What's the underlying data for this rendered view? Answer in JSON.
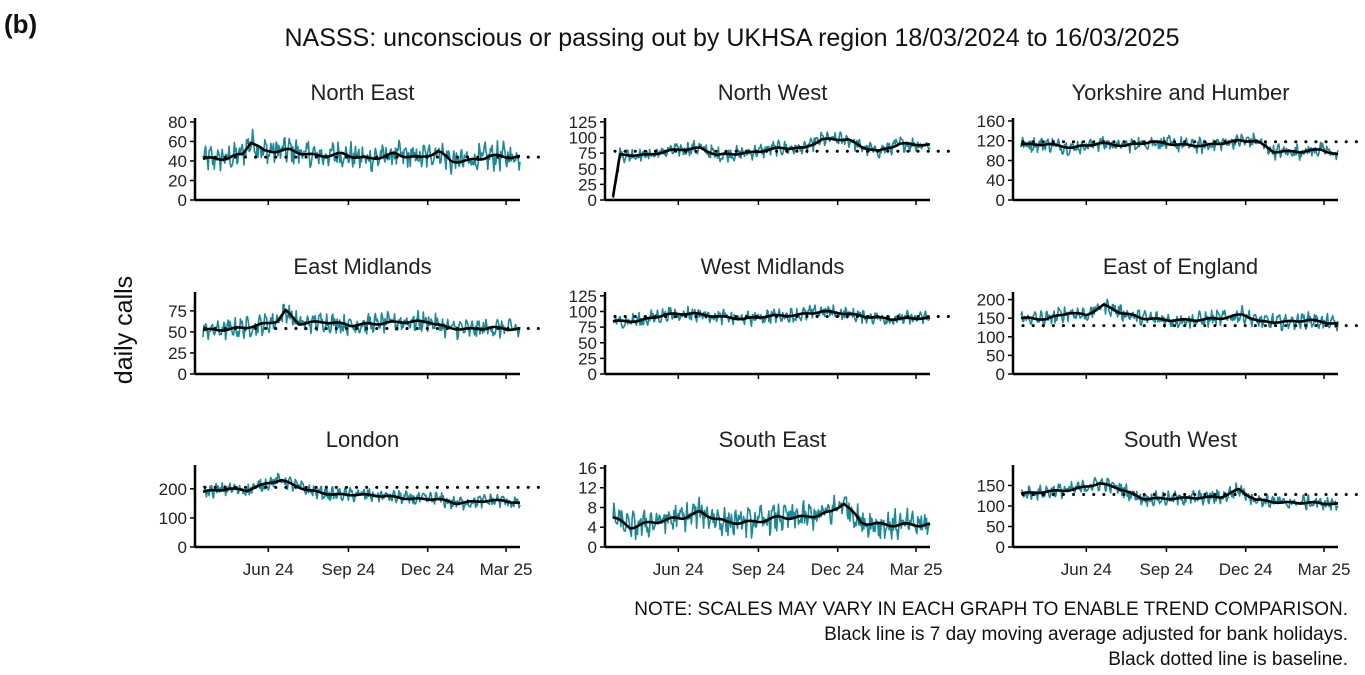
{
  "panel_label": "(b)",
  "title": "NASSS: unconscious or passing out by UKHSA region 18/03/2024 to 16/03/2025",
  "ylabel": "daily calls",
  "notes": [
    "NOTE: SCALES MAY VARY IN EACH GRAPH TO ENABLE TREND COMPARISON.",
    "Black line is 7 day moving average adjusted for bank holidays.",
    "Black dotted line is baseline."
  ],
  "colors": {
    "daily": "#1a8a96",
    "average": "#000000",
    "baseline": "#000000"
  },
  "chart_data": [
    {
      "type": "line",
      "title": "North East",
      "x_range": [
        "2024-03-18",
        "2025-03-16"
      ],
      "x_ticks": [
        "Jun 24",
        "Sep 24",
        "Dec 24",
        "Mar 25"
      ],
      "y_ticks": [
        0,
        20,
        40,
        60,
        80
      ],
      "ylim": [
        0,
        82
      ],
      "baseline": 44,
      "avg_trend": [
        [
          0,
          42
        ],
        [
          30,
          43
        ],
        [
          45,
          47
        ],
        [
          55,
          60
        ],
        [
          70,
          50
        ],
        [
          100,
          51
        ],
        [
          130,
          45
        ],
        [
          160,
          47
        ],
        [
          190,
          42
        ],
        [
          220,
          47
        ],
        [
          250,
          43
        ],
        [
          270,
          50
        ],
        [
          285,
          40
        ],
        [
          305,
          40
        ],
        [
          330,
          45
        ],
        [
          363,
          44
        ]
      ],
      "daily_amplitude": 12
    },
    {
      "type": "line",
      "title": "North West",
      "x_range": [
        "2024-03-18",
        "2025-03-16"
      ],
      "x_ticks": [
        "Jun 24",
        "Sep 24",
        "Dec 24",
        "Mar 25"
      ],
      "y_ticks": [
        0,
        25,
        50,
        75,
        100,
        125
      ],
      "ylim": [
        0,
        128
      ],
      "baseline": 78,
      "avg_trend": [
        [
          0,
          5
        ],
        [
          8,
          72
        ],
        [
          40,
          72
        ],
        [
          70,
          80
        ],
        [
          100,
          83
        ],
        [
          120,
          72
        ],
        [
          160,
          76
        ],
        [
          190,
          83
        ],
        [
          220,
          83
        ],
        [
          240,
          97
        ],
        [
          270,
          97
        ],
        [
          285,
          85
        ],
        [
          305,
          78
        ],
        [
          330,
          90
        ],
        [
          363,
          88
        ]
      ],
      "daily_amplitude": 10
    },
    {
      "type": "line",
      "title": "Yorkshire and Humber",
      "x_range": [
        "2024-03-18",
        "2025-03-16"
      ],
      "x_ticks": [
        "Jun 24",
        "Sep 24",
        "Dec 24",
        "Mar 25"
      ],
      "y_ticks": [
        0,
        40,
        80,
        120,
        160
      ],
      "ylim": [
        0,
        162
      ],
      "baseline": 118,
      "avg_trend": [
        [
          0,
          112
        ],
        [
          30,
          113
        ],
        [
          60,
          106
        ],
        [
          90,
          115
        ],
        [
          120,
          110
        ],
        [
          150,
          118
        ],
        [
          180,
          112
        ],
        [
          210,
          110
        ],
        [
          250,
          120
        ],
        [
          270,
          120
        ],
        [
          290,
          98
        ],
        [
          320,
          98
        ],
        [
          345,
          102
        ],
        [
          363,
          92
        ]
      ],
      "daily_amplitude": 13
    },
    {
      "type": "line",
      "title": "East Midlands",
      "x_range": [
        "2024-03-18",
        "2025-03-16"
      ],
      "x_ticks": [
        "Jun 24",
        "Sep 24",
        "Dec 24",
        "Mar 25"
      ],
      "y_ticks": [
        0,
        25,
        50,
        75
      ],
      "ylim": [
        0,
        95
      ],
      "baseline": 54,
      "avg_trend": [
        [
          0,
          52
        ],
        [
          30,
          53
        ],
        [
          60,
          57
        ],
        [
          85,
          63
        ],
        [
          95,
          75
        ],
        [
          110,
          60
        ],
        [
          140,
          62
        ],
        [
          170,
          58
        ],
        [
          200,
          60
        ],
        [
          230,
          62
        ],
        [
          260,
          62
        ],
        [
          280,
          55
        ],
        [
          305,
          53
        ],
        [
          330,
          55
        ],
        [
          363,
          53
        ]
      ],
      "daily_amplitude": 10
    },
    {
      "type": "line",
      "title": "West Midlands",
      "x_range": [
        "2024-03-18",
        "2025-03-16"
      ],
      "x_ticks": [
        "Jun 24",
        "Sep 24",
        "Dec 24",
        "Mar 25"
      ],
      "y_ticks": [
        0,
        25,
        50,
        75,
        100,
        125
      ],
      "ylim": [
        0,
        128
      ],
      "baseline": 92,
      "avg_trend": [
        [
          0,
          84
        ],
        [
          30,
          85
        ],
        [
          60,
          95
        ],
        [
          90,
          97
        ],
        [
          120,
          92
        ],
        [
          150,
          88
        ],
        [
          180,
          93
        ],
        [
          210,
          94
        ],
        [
          240,
          100
        ],
        [
          260,
          98
        ],
        [
          290,
          92
        ],
        [
          320,
          88
        ],
        [
          345,
          89
        ],
        [
          363,
          90
        ]
      ],
      "daily_amplitude": 10
    },
    {
      "type": "line",
      "title": "East of England",
      "x_range": [
        "2024-03-18",
        "2025-03-16"
      ],
      "x_ticks": [
        "Jun 24",
        "Sep 24",
        "Dec 24",
        "Mar 25"
      ],
      "y_ticks": [
        0,
        50,
        100,
        150,
        200
      ],
      "ylim": [
        0,
        215
      ],
      "baseline": 130,
      "avg_trend": [
        [
          0,
          150
        ],
        [
          30,
          148
        ],
        [
          55,
          165
        ],
        [
          75,
          158
        ],
        [
          95,
          185
        ],
        [
          115,
          165
        ],
        [
          140,
          150
        ],
        [
          170,
          145
        ],
        [
          200,
          145
        ],
        [
          230,
          150
        ],
        [
          255,
          160
        ],
        [
          275,
          140
        ],
        [
          305,
          140
        ],
        [
          330,
          145
        ],
        [
          363,
          135
        ]
      ],
      "daily_amplitude": 18
    },
    {
      "type": "line",
      "title": "London",
      "x_range": [
        "2024-03-18",
        "2025-03-16"
      ],
      "x_ticks": [
        "Jun 24",
        "Sep 24",
        "Dec 24",
        "Mar 25"
      ],
      "y_ticks": [
        0,
        100,
        200
      ],
      "ylim": [
        0,
        275
      ],
      "baseline": 205,
      "avg_trend": [
        [
          0,
          190
        ],
        [
          30,
          200
        ],
        [
          50,
          195
        ],
        [
          75,
          220
        ],
        [
          90,
          230
        ],
        [
          120,
          195
        ],
        [
          150,
          180
        ],
        [
          180,
          180
        ],
        [
          210,
          175
        ],
        [
          240,
          165
        ],
        [
          270,
          165
        ],
        [
          290,
          150
        ],
        [
          320,
          158
        ],
        [
          345,
          160
        ],
        [
          363,
          150
        ]
      ],
      "daily_amplitude": 20
    },
    {
      "type": "line",
      "title": "South East",
      "x_range": [
        "2024-03-18",
        "2025-03-16"
      ],
      "x_ticks": [
        "Jun 24",
        "Sep 24",
        "Dec 24",
        "Mar 25"
      ],
      "y_ticks": [
        0,
        4,
        8,
        12,
        16
      ],
      "ylim": [
        0,
        16.2
      ],
      "baseline": null,
      "avg_trend": [
        [
          0,
          6
        ],
        [
          20,
          4
        ],
        [
          45,
          5
        ],
        [
          80,
          6
        ],
        [
          100,
          7
        ],
        [
          130,
          5
        ],
        [
          160,
          5
        ],
        [
          190,
          6
        ],
        [
          220,
          6
        ],
        [
          250,
          7
        ],
        [
          265,
          9
        ],
        [
          285,
          5
        ],
        [
          310,
          4.5
        ],
        [
          340,
          4.5
        ],
        [
          363,
          4.5
        ]
      ],
      "daily_amplitude": 2.5
    },
    {
      "type": "line",
      "title": "South West",
      "x_range": [
        "2024-03-18",
        "2025-03-16"
      ],
      "x_ticks": [
        "Jun 24",
        "Sep 24",
        "Dec 24",
        "Mar 25"
      ],
      "y_ticks": [
        0,
        50,
        100,
        150
      ],
      "ylim": [
        0,
        195
      ],
      "baseline": 128,
      "avg_trend": [
        [
          0,
          130
        ],
        [
          30,
          135
        ],
        [
          60,
          140
        ],
        [
          90,
          155
        ],
        [
          110,
          145
        ],
        [
          140,
          118
        ],
        [
          170,
          118
        ],
        [
          200,
          120
        ],
        [
          230,
          122
        ],
        [
          250,
          140
        ],
        [
          270,
          115
        ],
        [
          300,
          108
        ],
        [
          330,
          108
        ],
        [
          363,
          105
        ]
      ],
      "daily_amplitude": 15
    }
  ]
}
